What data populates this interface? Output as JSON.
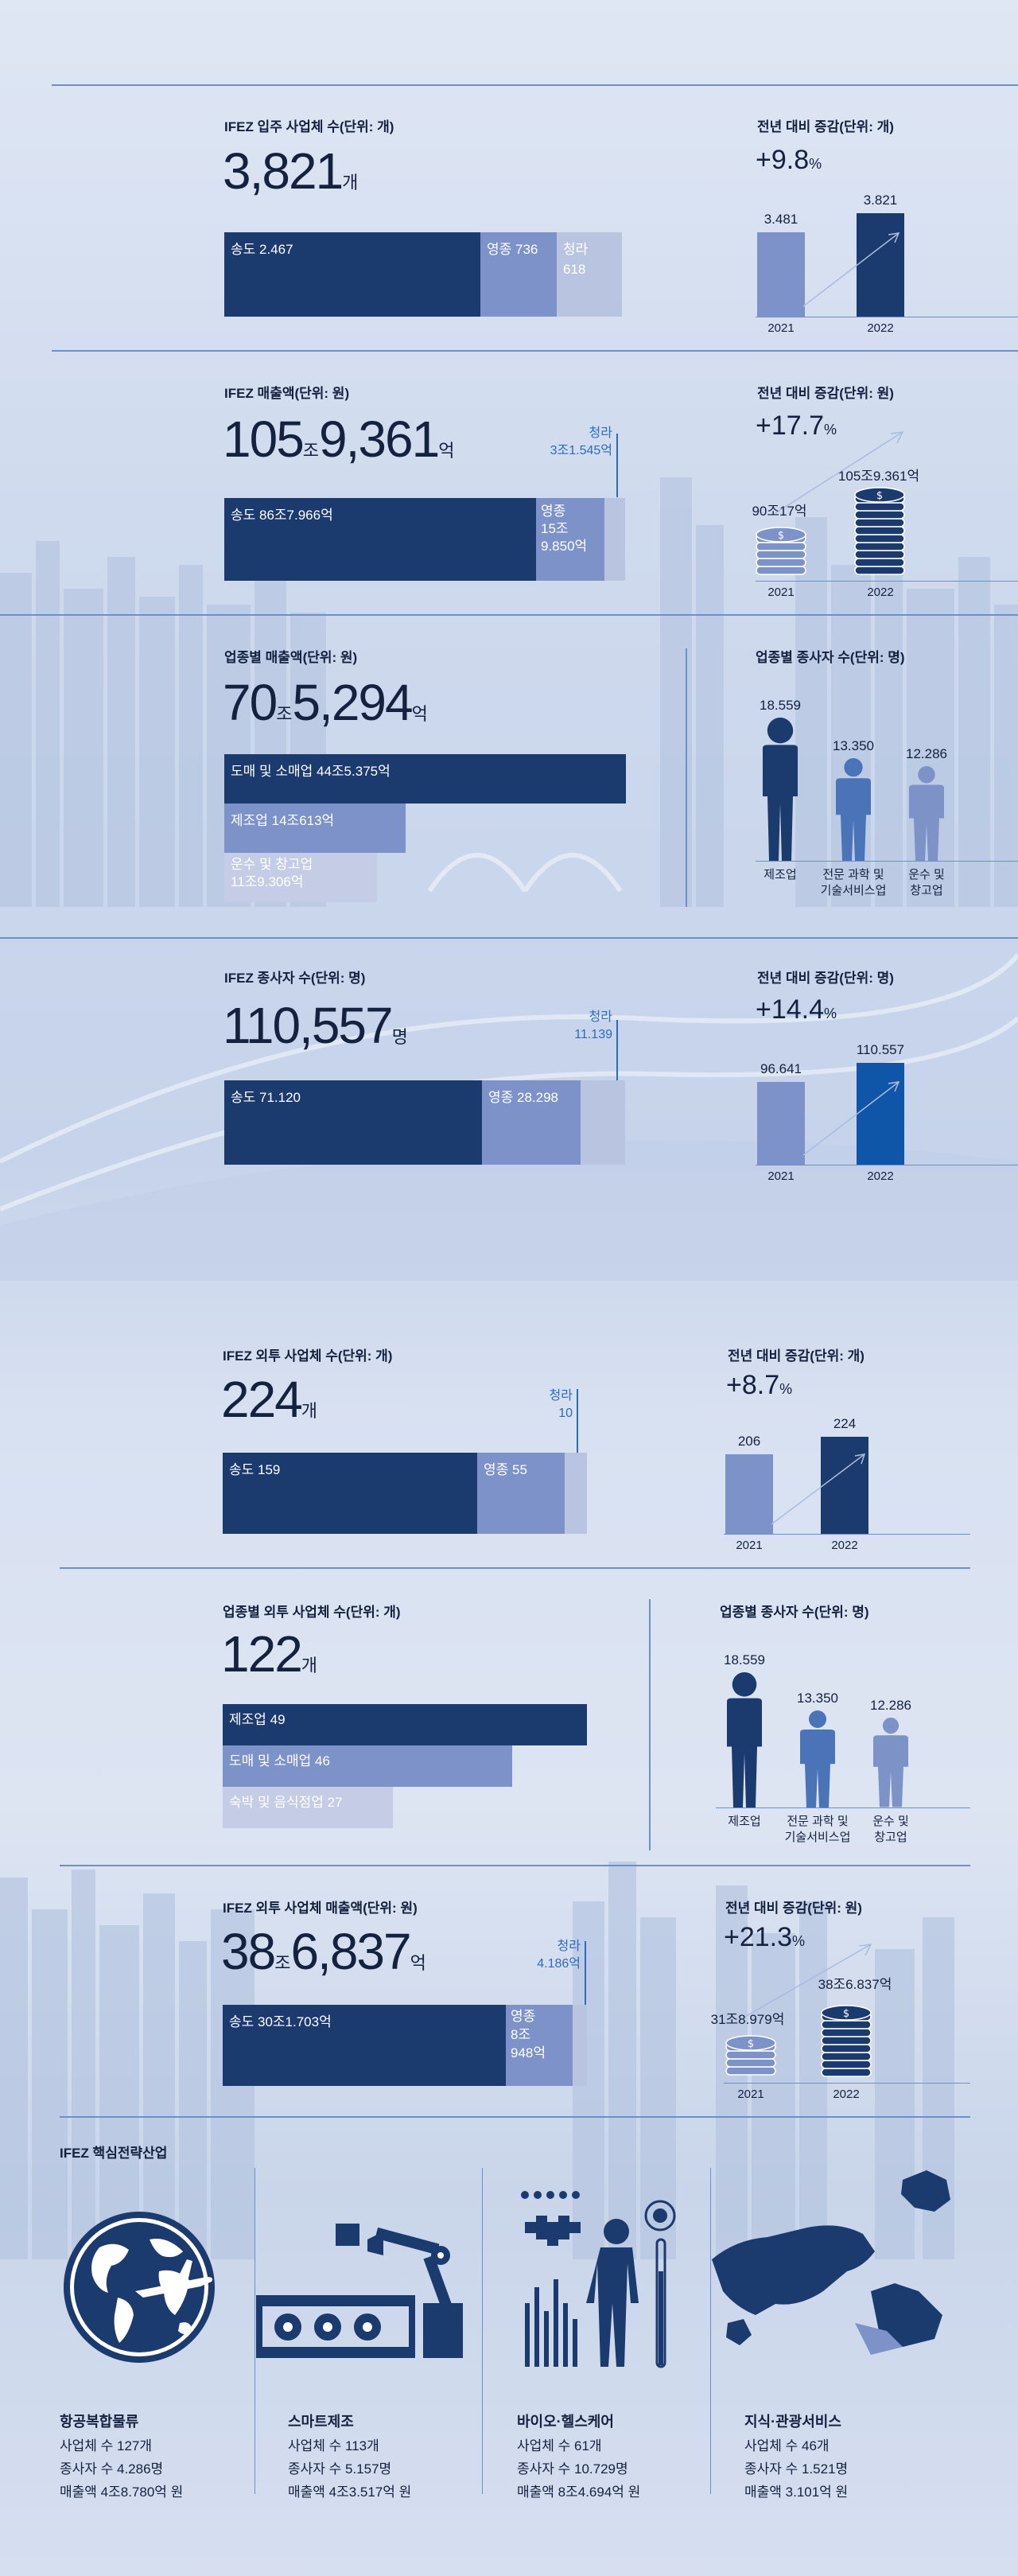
{
  "sec1": {
    "title": "IFEZ 입주 사업체 수(단위: 개)",
    "total": "3,821",
    "total_unit": "개",
    "segments": [
      {
        "label": "송도 2.467",
        "value": 2467
      },
      {
        "label": "영종 736",
        "value": 736
      },
      {
        "label_a": "청라",
        "label_b": "618",
        "value": 618
      }
    ],
    "yoy_title": "전년 대비 증감(단위: 개)",
    "yoy": "+9.8",
    "yoy_unit": "%",
    "bars": [
      {
        "year": "2021",
        "label": "3.481",
        "value": 3481
      },
      {
        "year": "2022",
        "label": "3.821",
        "value": 3821
      }
    ]
  },
  "sec2": {
    "title": "IFEZ 매출액(단위: 원)",
    "total_a": "105",
    "unit_a": "조",
    "total_b": "9,361",
    "unit_b": "억",
    "callout_a": "청라",
    "callout_b": "3조1.545억",
    "seg1": "송도 86조7.966억",
    "seg2_a": "영종",
    "seg2_b": "15조",
    "seg2_c": "9.850억",
    "yoy_title": "전년 대비 증감(단위: 원)",
    "yoy": "+17.7",
    "yoy_unit": "%",
    "bars": [
      {
        "year": "2021",
        "label": "90조17억"
      },
      {
        "year": "2022",
        "label": "105조9.361억"
      }
    ]
  },
  "sec3": {
    "title": "업종별 매출액(단위: 원)",
    "total_a": "70",
    "unit_a": "조",
    "total_b": "5,294",
    "unit_b": "억",
    "rows": [
      {
        "label": "도매 및 소매업 44조5.375억",
        "value": 445375
      },
      {
        "label": "제조업 14조613억",
        "value": 140613
      },
      {
        "label_a": "운수 및 창고업",
        "label_b": "11조9.306억",
        "value": 119306
      }
    ],
    "emp_title": "업종별 종사자 수(단위: 명)",
    "people": [
      {
        "value_label": "18.559",
        "name_a": "제조업",
        "name_b": "",
        "value": 18559,
        "color": "#1b3a6e"
      },
      {
        "value_label": "13.350",
        "name_a": "전문 과학 및",
        "name_b": "기술서비스업",
        "value": 13350,
        "color": "#4a73b8"
      },
      {
        "value_label": "12.286",
        "name_a": "운수 및",
        "name_b": "창고업",
        "value": 12286,
        "color": "#7d92c6"
      }
    ]
  },
  "sec4": {
    "title": "IFEZ 종사자 수(단위: 명)",
    "total": "110,557",
    "total_unit": "명",
    "callout_a": "청라",
    "callout_b": "11.139",
    "segments": [
      {
        "label": "송도 71.120",
        "value": 71120
      },
      {
        "label": "영종 28.298",
        "value": 28298
      },
      {
        "value": 11139
      }
    ],
    "yoy_title": "전년 대비 증감(단위: 명)",
    "yoy": "+14.4",
    "yoy_unit": "%",
    "bars": [
      {
        "year": "2021",
        "label": "96.641",
        "value": 96641
      },
      {
        "year": "2022",
        "label": "110.557",
        "value": 110557
      }
    ]
  },
  "sec5": {
    "title": "IFEZ 외투 사업체 수(단위: 개)",
    "total": "224",
    "total_unit": "개",
    "callout_a": "청라",
    "callout_b": "10",
    "segments": [
      {
        "label": "송도 159",
        "value": 159
      },
      {
        "label": "영종 55",
        "value": 55
      },
      {
        "value": 10
      }
    ],
    "yoy_title": "전년 대비 증감(단위: 개)",
    "yoy": "+8.7",
    "yoy_unit": "%",
    "bars": [
      {
        "year": "2021",
        "label": "206",
        "value": 206
      },
      {
        "year": "2022",
        "label": "224",
        "value": 224
      }
    ]
  },
  "sec6": {
    "title": "업종별 외투 사업체 수(단위: 개)",
    "total": "122",
    "total_unit": "개",
    "rows": [
      {
        "label": "제조업 49",
        "value": 49
      },
      {
        "label": "도매 및 소매업 46",
        "value": 46
      },
      {
        "label": "숙박 및 음식점업 27",
        "value": 27
      }
    ],
    "emp_title": "업종별 종사자 수(단위: 명)",
    "people": [
      {
        "value_label": "18.559",
        "name_a": "제조업",
        "name_b": "",
        "value": 18559,
        "color": "#1b3a6e"
      },
      {
        "value_label": "13.350",
        "name_a": "전문 과학 및",
        "name_b": "기술서비스업",
        "value": 13350,
        "color": "#4a73b8"
      },
      {
        "value_label": "12.286",
        "name_a": "운수 및",
        "name_b": "창고업",
        "value": 12286,
        "color": "#7d92c6"
      }
    ]
  },
  "sec7": {
    "title": "IFEZ 외투 사업체 매출액(단위: 원)",
    "total_a": "38",
    "unit_a": "조",
    "total_b": "6,837",
    "unit_b": "억",
    "callout_a": "청라",
    "callout_b": "4.186억",
    "seg1": "송도 30조1.703억",
    "seg2_a": "영종",
    "seg2_b": "8조",
    "seg2_c": "948억",
    "yoy_title": "전년 대비 증감(단위: 원)",
    "yoy": "+21.3",
    "yoy_unit": "%",
    "bars": [
      {
        "year": "2021",
        "label": "31조8.979억"
      },
      {
        "year": "2022",
        "label": "38조6.837억"
      }
    ]
  },
  "industries": {
    "title": "IFEZ 핵심전략산업",
    "items": [
      {
        "name": "항공복합물류",
        "l1": "사업체 수 127개",
        "l2": "종사자 수 4.286명",
        "l3": "매출액 4조8.780억 원"
      },
      {
        "name": "스마트제조",
        "l1": "사업체 수 113개",
        "l2": "종사자 수 5.157명",
        "l3": "매출액 4조3.517억 원"
      },
      {
        "name": "바이오·헬스케어",
        "l1": "사업체 수 61개",
        "l2": "종사자 수 10.729명",
        "l3": "매출액 8조4.694억 원"
      },
      {
        "name": "지식·관광서비스",
        "l1": "사업체 수 46개",
        "l2": "종사자 수 1.521명",
        "l3": "매출액 3.101억 원"
      }
    ]
  },
  "chart_data": [
    {
      "type": "bar",
      "title": "IFEZ 입주 사업체 수(단위: 개)",
      "categories": [
        "송도",
        "영종",
        "청라"
      ],
      "values": [
        2467,
        736,
        618
      ]
    },
    {
      "type": "bar",
      "title": "전년 대비 증감(단위: 개)",
      "categories": [
        "2021",
        "2022"
      ],
      "values": [
        3481,
        3821
      ]
    },
    {
      "type": "bar",
      "title": "IFEZ 매출액(단위: 원)",
      "categories": [
        "송도",
        "영종",
        "청라"
      ],
      "values": [
        "86조7.966억",
        "15조9.850억",
        "3조1.545억"
      ]
    },
    {
      "type": "bar",
      "title": "전년 대비 증감(단위: 원)",
      "categories": [
        "2021",
        "2022"
      ],
      "values": [
        "90조17억",
        "105조9.361억"
      ]
    },
    {
      "type": "bar",
      "title": "업종별 매출액(단위: 원)",
      "categories": [
        "도매 및 소매업",
        "제조업",
        "운수 및 창고업"
      ],
      "values": [
        "44조5.375억",
        "14조613억",
        "11조9.306억"
      ]
    },
    {
      "type": "bar",
      "title": "업종별 종사자 수(단위: 명)",
      "categories": [
        "제조업",
        "전문 과학 및 기술서비스업",
        "운수 및 창고업"
      ],
      "values": [
        18559,
        13350,
        12286
      ]
    },
    {
      "type": "bar",
      "title": "IFEZ 종사자 수(단위: 명)",
      "categories": [
        "송도",
        "영종",
        "청라"
      ],
      "values": [
        71120,
        28298,
        11139
      ]
    },
    {
      "type": "bar",
      "title": "전년 대비 증감(단위: 명)",
      "categories": [
        "2021",
        "2022"
      ],
      "values": [
        96641,
        110557
      ]
    },
    {
      "type": "bar",
      "title": "IFEZ 외투 사업체 수(단위: 개)",
      "categories": [
        "송도",
        "영종",
        "청라"
      ],
      "values": [
        159,
        55,
        10
      ]
    },
    {
      "type": "bar",
      "title": "전년 대비 증감(단위: 개)",
      "categories": [
        "2021",
        "2022"
      ],
      "values": [
        206,
        224
      ]
    },
    {
      "type": "bar",
      "title": "업종별 외투 사업체 수(단위: 개)",
      "categories": [
        "제조업",
        "도매 및 소매업",
        "숙박 및 음식점업"
      ],
      "values": [
        49,
        46,
        27
      ]
    },
    {
      "type": "bar",
      "title": "업종별 종사자 수(단위: 명)",
      "categories": [
        "제조업",
        "전문 과학 및 기술서비스업",
        "운수 및 창고업"
      ],
      "values": [
        18559,
        13350,
        12286
      ]
    },
    {
      "type": "bar",
      "title": "IFEZ 외투 사업체 매출액(단위: 원)",
      "categories": [
        "송도",
        "영종",
        "청라"
      ],
      "values": [
        "30조1.703억",
        "8조948억",
        "4.186억"
      ]
    },
    {
      "type": "bar",
      "title": "전년 대비 증감(단위: 원)",
      "categories": [
        "2021",
        "2022"
      ],
      "values": [
        "31조8.979억",
        "38조6.837억"
      ]
    }
  ]
}
